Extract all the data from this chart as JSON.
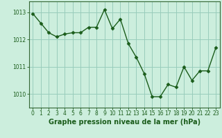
{
  "x": [
    0,
    1,
    2,
    3,
    4,
    5,
    6,
    7,
    8,
    9,
    10,
    11,
    12,
    13,
    14,
    15,
    16,
    17,
    18,
    19,
    20,
    21,
    22,
    23
  ],
  "y": [
    1012.95,
    1012.6,
    1012.25,
    1012.1,
    1012.2,
    1012.25,
    1012.25,
    1012.45,
    1012.45,
    1013.1,
    1012.4,
    1012.75,
    1011.85,
    1011.35,
    1010.75,
    1009.9,
    1009.9,
    1010.35,
    1010.25,
    1011.0,
    1010.5,
    1010.85,
    1010.85,
    1011.7
  ],
  "line_color": "#1a5c1a",
  "marker": "D",
  "marker_size": 2.5,
  "bg_color": "#cceedd",
  "grid_color": "#99ccbb",
  "spine_color": "#336633",
  "xlabel": "Graphe pression niveau de la mer (hPa)",
  "xlabel_color": "#1a5c1a",
  "tick_color": "#1a5c1a",
  "ylim": [
    1009.5,
    1013.4
  ],
  "xlim": [
    -0.5,
    23.5
  ],
  "yticks": [
    1010,
    1011,
    1012,
    1013
  ],
  "xticks": [
    0,
    1,
    2,
    3,
    4,
    5,
    6,
    7,
    8,
    9,
    10,
    11,
    12,
    13,
    14,
    15,
    16,
    17,
    18,
    19,
    20,
    21,
    22,
    23
  ],
  "tick_fontsize": 5.5,
  "xlabel_fontsize": 7.0,
  "linewidth": 1.0
}
